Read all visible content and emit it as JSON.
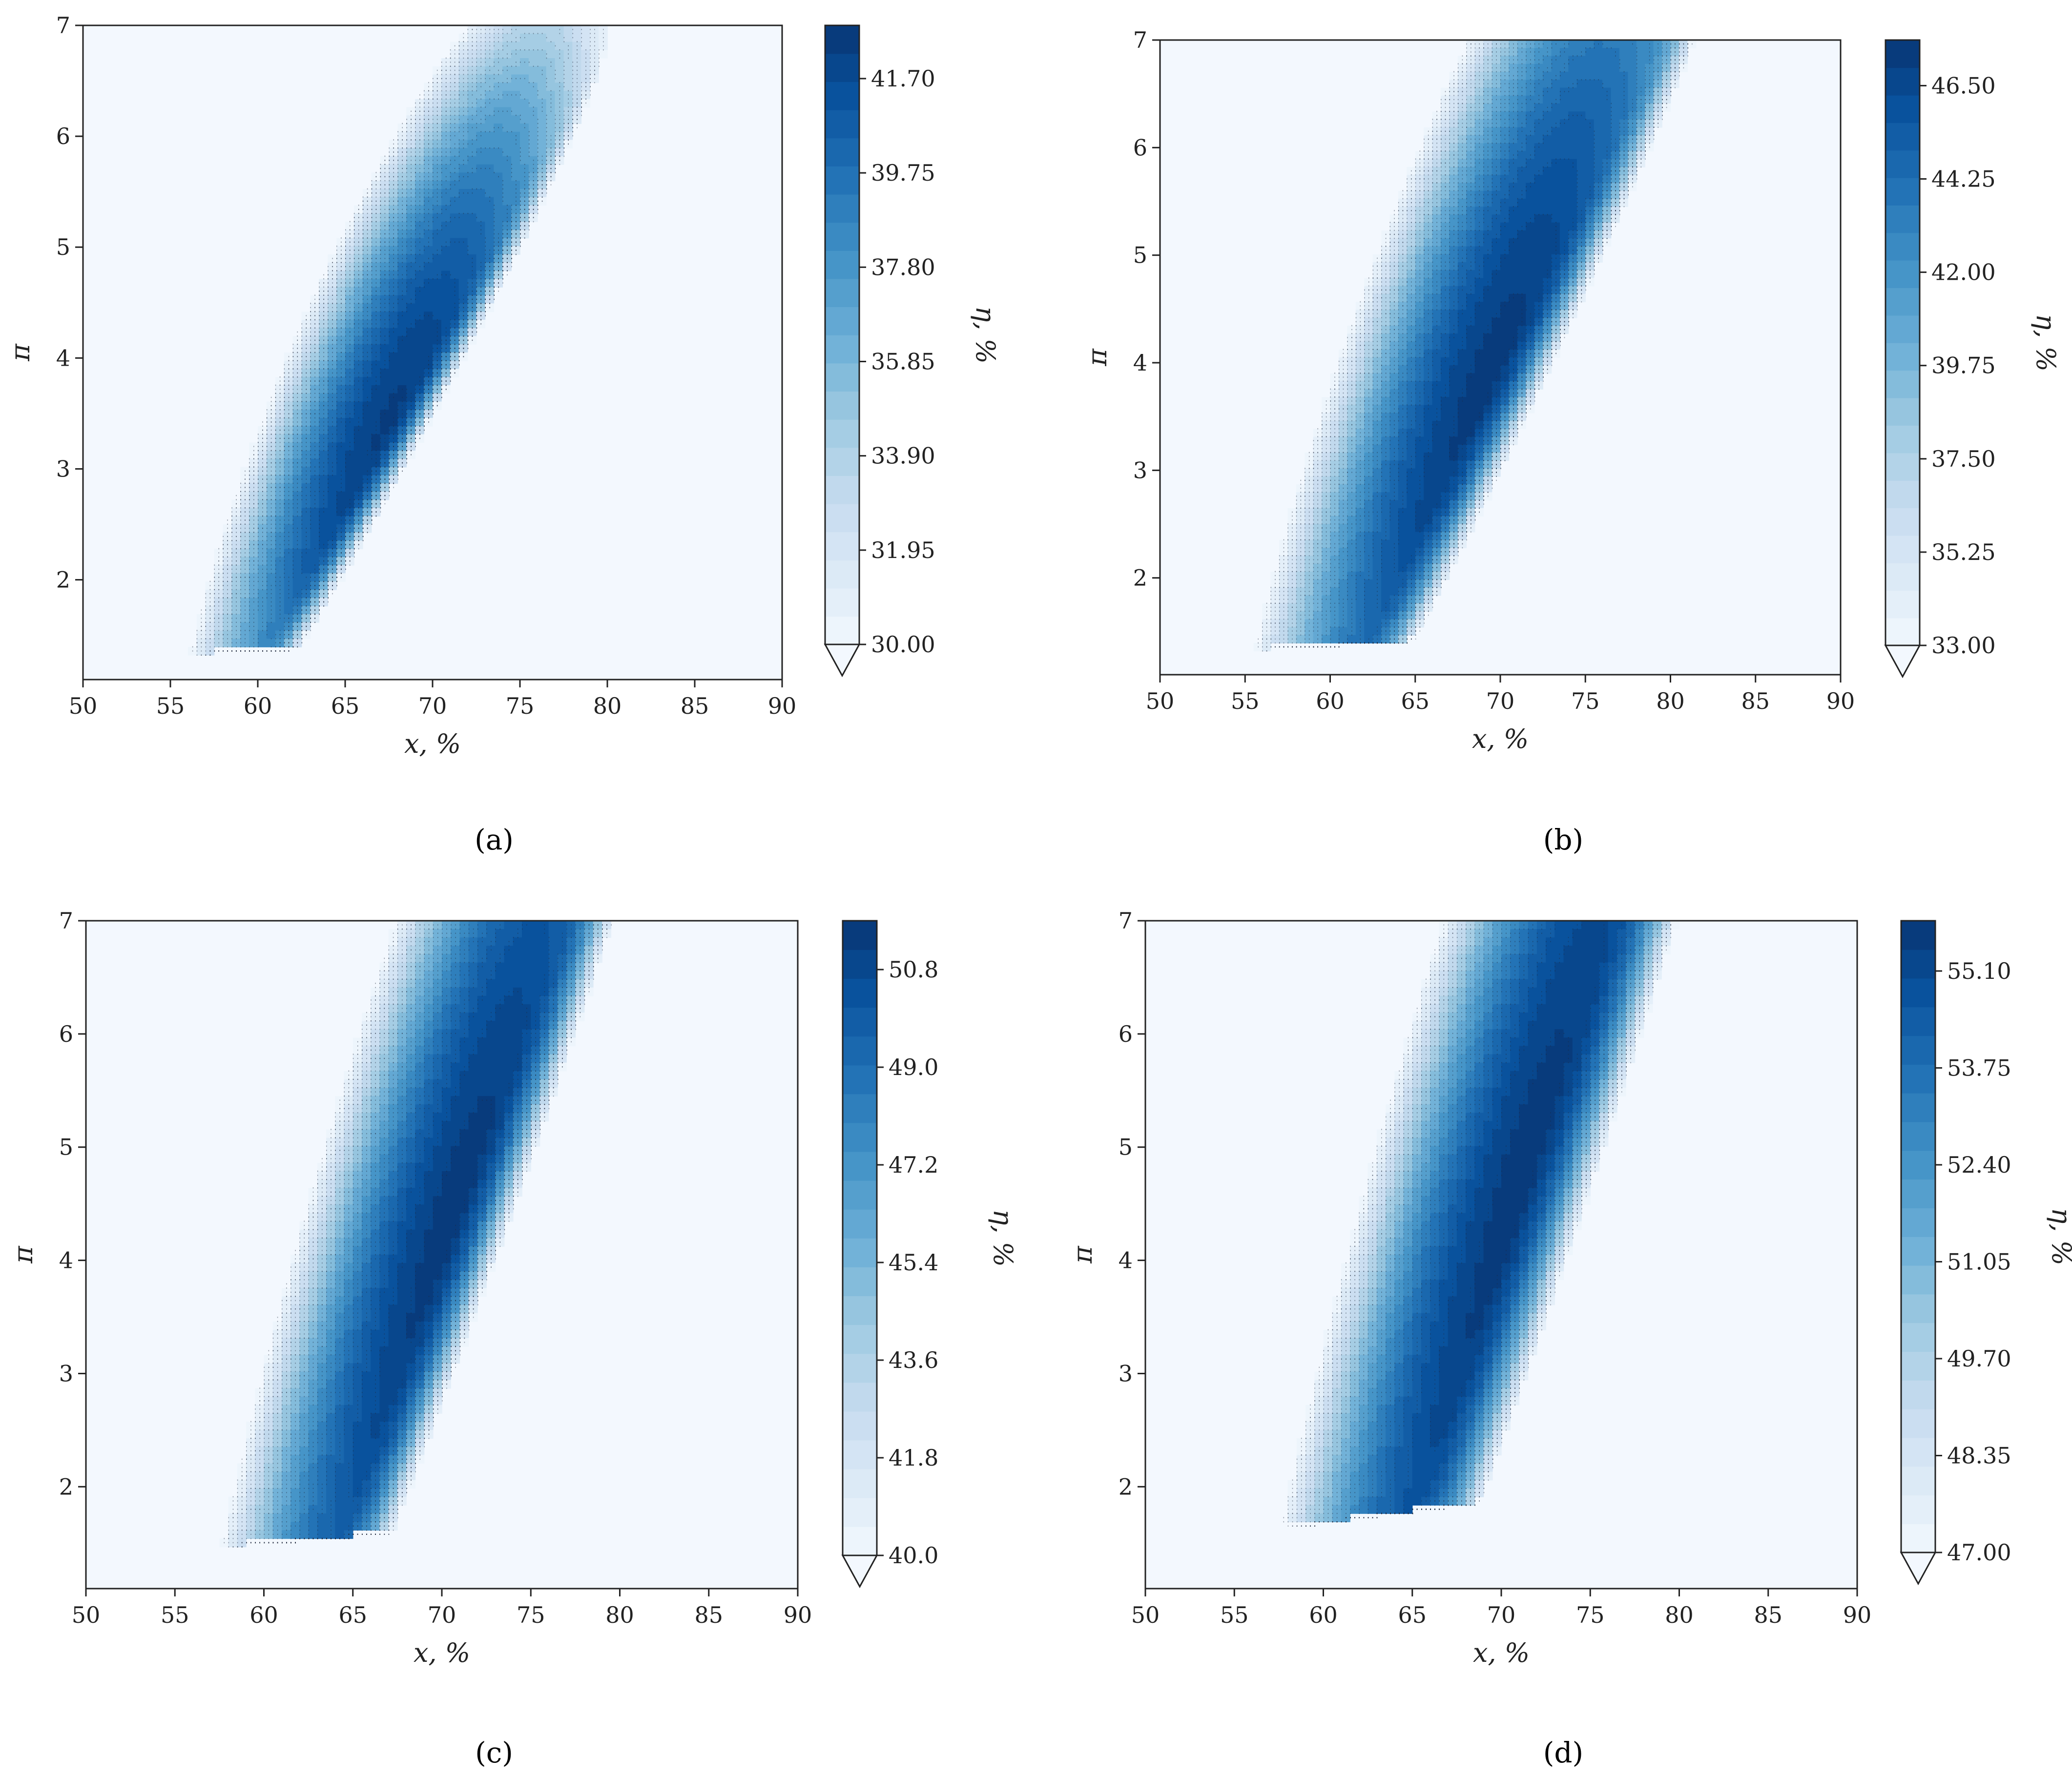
{
  "chart_data": [
    {
      "type": "contour",
      "panel_label": "(a)",
      "xlabel": "x, %",
      "ylabel": "π",
      "colorbar_label": "η, %",
      "xlim": [
        50,
        90
      ],
      "ylim": [
        1.1,
        7
      ],
      "x_ticks": [
        "50",
        "55",
        "60",
        "65",
        "70",
        "75",
        "80",
        "85",
        "90"
      ],
      "y_ticks": [
        "2",
        "3",
        "4",
        "5",
        "6",
        "7"
      ],
      "colorbar_ticks": [
        "30.00",
        "31.95",
        "33.90",
        "35.85",
        "37.80",
        "39.75",
        "41.70"
      ],
      "colorbar_range": [
        30.0,
        42.8
      ],
      "colormap": "Blues",
      "peak": {
        "x": 67.5,
        "y": 3.4,
        "value": 42.3
      },
      "spread": {
        "x": 10,
        "y_up": 2.2,
        "y_down": 0.55,
        "decay_x": 1.15,
        "decay_y": 1.4
      },
      "ridge_slope": 0.28,
      "gutter_line": {
        "x0": 1.3,
        "slope": 0.008
      }
    },
    {
      "type": "contour",
      "panel_label": "(b)",
      "xlabel": "x, %",
      "ylabel": "π",
      "colorbar_label": "η, %",
      "xlim": [
        50,
        90
      ],
      "ylim": [
        1.1,
        7
      ],
      "x_ticks": [
        "50",
        "55",
        "60",
        "65",
        "70",
        "75",
        "80",
        "85",
        "90"
      ],
      "y_ticks": [
        "2",
        "3",
        "4",
        "5",
        "6",
        "7"
      ],
      "colorbar_ticks": [
        "33.00",
        "35.25",
        "37.50",
        "39.75",
        "42.00",
        "44.25",
        "46.50"
      ],
      "colorbar_range": [
        33.0,
        47.6
      ],
      "colormap": "Blues",
      "peak": {
        "x": 69.3,
        "y": 3.8,
        "value": 47.2
      },
      "spread": {
        "x": 12,
        "y_up": 2.8,
        "y_down": 0.8,
        "decay_x": 1.0,
        "decay_y": 1.1
      },
      "ridge_slope": 0.32,
      "gutter_line": {
        "x0": 1.3,
        "slope": 0.009
      }
    },
    {
      "type": "contour",
      "panel_label": "(c)",
      "xlabel": "x, %",
      "ylabel": "π",
      "colorbar_label": "η, %",
      "xlim": [
        50,
        90
      ],
      "ylim": [
        1.1,
        7
      ],
      "x_ticks": [
        "50",
        "55",
        "60",
        "65",
        "70",
        "75",
        "80",
        "85",
        "90"
      ],
      "y_ticks": [
        "2",
        "3",
        "4",
        "5",
        "6",
        "7"
      ],
      "colorbar_ticks": [
        "40.0",
        "41.8",
        "43.6",
        "45.4",
        "47.2",
        "49.0",
        "50.8"
      ],
      "colorbar_range": [
        40.0,
        51.7
      ],
      "colormap": "Blues",
      "peak": {
        "x": 70.5,
        "y": 4.3,
        "value": 51.4
      },
      "spread": {
        "x": 12,
        "y_up": 3.0,
        "y_down": 1.0,
        "decay_x": 0.95,
        "decay_y": 1.0
      },
      "ridge_slope": 0.42,
      "gutter_line": {
        "x0": 1.4,
        "slope": 0.012
      }
    },
    {
      "type": "contour",
      "panel_label": "(d)",
      "xlabel": "x, %",
      "ylabel": "π",
      "colorbar_label": "η, %",
      "xlim": [
        50,
        90
      ],
      "ylim": [
        1.1,
        7
      ],
      "x_ticks": [
        "50",
        "55",
        "60",
        "65",
        "70",
        "75",
        "80",
        "85",
        "90"
      ],
      "y_ticks": [
        "2",
        "3",
        "4",
        "5",
        "6",
        "7"
      ],
      "colorbar_ticks": [
        "47.00",
        "48.35",
        "49.70",
        "51.05",
        "52.40",
        "53.75",
        "55.10"
      ],
      "colorbar_range": [
        47.0,
        55.8
      ],
      "colormap": "Blues",
      "peak": {
        "x": 71.0,
        "y": 4.6,
        "value": 55.6
      },
      "spread": {
        "x": 13,
        "y_up": 3.2,
        "y_down": 1.3,
        "decay_x": 0.9,
        "decay_y": 0.95
      },
      "ridge_slope": 0.45,
      "gutter_line": {
        "x0": 1.5,
        "slope": 0.02
      }
    }
  ]
}
